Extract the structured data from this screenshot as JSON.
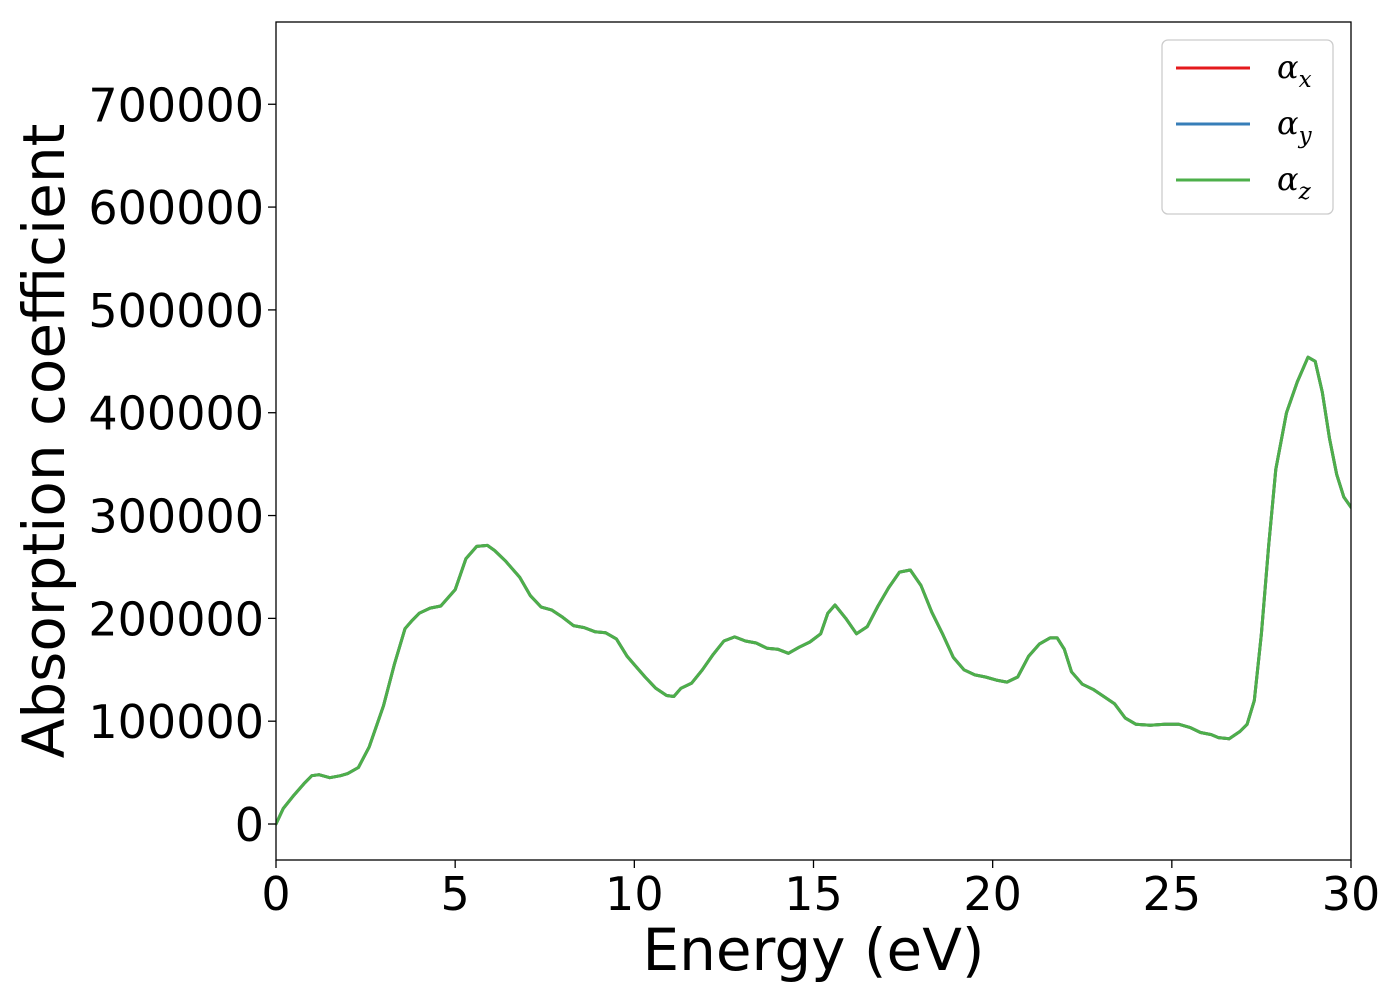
{
  "chart_data": {
    "type": "line",
    "xlabel": "Energy (eV)",
    "ylabel": "Absorption coefficient",
    "xlim": [
      0,
      30
    ],
    "ylim": [
      -35000,
      780000
    ],
    "xticks": [
      0,
      5,
      10,
      15,
      20,
      25,
      30
    ],
    "xtick_labels": [
      "0",
      "5",
      "10",
      "15",
      "20",
      "25",
      "30"
    ],
    "yticks": [
      0,
      100000,
      200000,
      300000,
      400000,
      500000,
      600000,
      700000
    ],
    "ytick_labels": [
      "0",
      "100000",
      "200000",
      "300000",
      "400000",
      "500000",
      "600000",
      "700000"
    ],
    "grid": false,
    "legend_position": "top-right",
    "x": [
      0,
      0.2,
      0.5,
      0.8,
      1.0,
      1.2,
      1.5,
      1.8,
      2.0,
      2.3,
      2.6,
      3.0,
      3.3,
      3.6,
      3.8,
      4.0,
      4.3,
      4.6,
      5.0,
      5.3,
      5.6,
      5.9,
      6.1,
      6.4,
      6.8,
      7.1,
      7.4,
      7.7,
      8.0,
      8.3,
      8.6,
      8.9,
      9.2,
      9.5,
      9.8,
      10.0,
      10.3,
      10.6,
      10.9,
      11.1,
      11.3,
      11.6,
      11.9,
      12.2,
      12.5,
      12.8,
      13.1,
      13.4,
      13.7,
      14.0,
      14.3,
      14.6,
      14.9,
      15.2,
      15.4,
      15.6,
      15.9,
      16.2,
      16.5,
      16.8,
      17.1,
      17.4,
      17.7,
      18.0,
      18.3,
      18.6,
      18.9,
      19.2,
      19.5,
      19.8,
      20.1,
      20.4,
      20.7,
      21.0,
      21.3,
      21.6,
      21.8,
      22.0,
      22.2,
      22.5,
      22.8,
      23.1,
      23.4,
      23.7,
      24.0,
      24.4,
      24.8,
      25.2,
      25.5,
      25.8,
      26.1,
      26.3,
      26.6,
      26.9,
      27.1,
      27.3,
      27.5,
      27.7,
      27.9,
      28.2,
      28.5,
      28.8,
      29.0,
      29.2,
      29.4,
      29.6,
      29.8,
      30.0
    ],
    "series": [
      {
        "name": "α_x",
        "color": "#e41a1c",
        "values": [
          0,
          15000,
          28000,
          40000,
          47000,
          48000,
          45000,
          47000,
          49000,
          55000,
          75000,
          115000,
          155000,
          190000,
          198000,
          205000,
          210000,
          212000,
          228000,
          258000,
          270000,
          271000,
          266000,
          256000,
          240000,
          222000,
          211000,
          208000,
          201000,
          193000,
          191000,
          187000,
          186000,
          180000,
          163000,
          155000,
          143000,
          132000,
          125000,
          124000,
          132000,
          137000,
          150000,
          165000,
          178000,
          182000,
          178000,
          176000,
          171000,
          170000,
          166000,
          172000,
          177000,
          185000,
          205000,
          213000,
          200000,
          185000,
          192000,
          212000,
          230000,
          245000,
          247000,
          232000,
          206000,
          185000,
          162000,
          150000,
          145000,
          143000,
          140000,
          138000,
          143000,
          163000,
          175000,
          181000,
          181000,
          170000,
          148000,
          136000,
          131000,
          124000,
          117000,
          103000,
          97000,
          96000,
          97000,
          97000,
          94000,
          89000,
          87000,
          84000,
          83000,
          90000,
          97000,
          120000,
          185000,
          270000,
          345000,
          400000,
          430000,
          454000,
          450000,
          420000,
          375000,
          340000,
          318000,
          308000
        ]
      },
      {
        "name": "α_y",
        "color": "#377eb8",
        "values": [
          0,
          15000,
          28000,
          40000,
          47000,
          48000,
          45000,
          47000,
          49000,
          55000,
          75000,
          115000,
          155000,
          190000,
          198000,
          205000,
          210000,
          212000,
          228000,
          258000,
          270000,
          271000,
          266000,
          256000,
          240000,
          222000,
          211000,
          208000,
          201000,
          193000,
          191000,
          187000,
          186000,
          180000,
          163000,
          155000,
          143000,
          132000,
          125000,
          124000,
          132000,
          137000,
          150000,
          165000,
          178000,
          182000,
          178000,
          176000,
          171000,
          170000,
          166000,
          172000,
          177000,
          185000,
          205000,
          213000,
          200000,
          185000,
          192000,
          212000,
          230000,
          245000,
          247000,
          232000,
          206000,
          185000,
          162000,
          150000,
          145000,
          143000,
          140000,
          138000,
          143000,
          163000,
          175000,
          181000,
          181000,
          170000,
          148000,
          136000,
          131000,
          124000,
          117000,
          103000,
          97000,
          96000,
          97000,
          97000,
          94000,
          89000,
          87000,
          84000,
          83000,
          90000,
          97000,
          120000,
          185000,
          270000,
          345000,
          400000,
          430000,
          454000,
          450000,
          420000,
          375000,
          340000,
          318000,
          308000
        ]
      },
      {
        "name": "α_z",
        "color": "#4daf4a",
        "values": [
          0,
          15000,
          28000,
          40000,
          47000,
          48000,
          45000,
          47000,
          49000,
          55000,
          75000,
          115000,
          155000,
          190000,
          198000,
          205000,
          210000,
          212000,
          228000,
          258000,
          270000,
          271000,
          266000,
          256000,
          240000,
          222000,
          211000,
          208000,
          201000,
          193000,
          191000,
          187000,
          186000,
          180000,
          163000,
          155000,
          143000,
          132000,
          125000,
          124000,
          132000,
          137000,
          150000,
          165000,
          178000,
          182000,
          178000,
          176000,
          171000,
          170000,
          166000,
          172000,
          177000,
          185000,
          205000,
          213000,
          200000,
          185000,
          192000,
          212000,
          230000,
          245000,
          247000,
          232000,
          206000,
          185000,
          162000,
          150000,
          145000,
          143000,
          140000,
          138000,
          143000,
          163000,
          175000,
          181000,
          181000,
          170000,
          148000,
          136000,
          131000,
          124000,
          117000,
          103000,
          97000,
          96000,
          97000,
          97000,
          94000,
          89000,
          87000,
          84000,
          83000,
          90000,
          97000,
          120000,
          185000,
          270000,
          345000,
          400000,
          430000,
          454000,
          450000,
          420000,
          375000,
          340000,
          318000,
          308000
        ]
      }
    ],
    "legend": {
      "entries": [
        {
          "label_base": "α",
          "label_sub": "x",
          "color": "#e41a1c"
        },
        {
          "label_base": "α",
          "label_sub": "y",
          "color": "#377eb8"
        },
        {
          "label_base": "α",
          "label_sub": "z",
          "color": "#4daf4a"
        }
      ]
    }
  }
}
